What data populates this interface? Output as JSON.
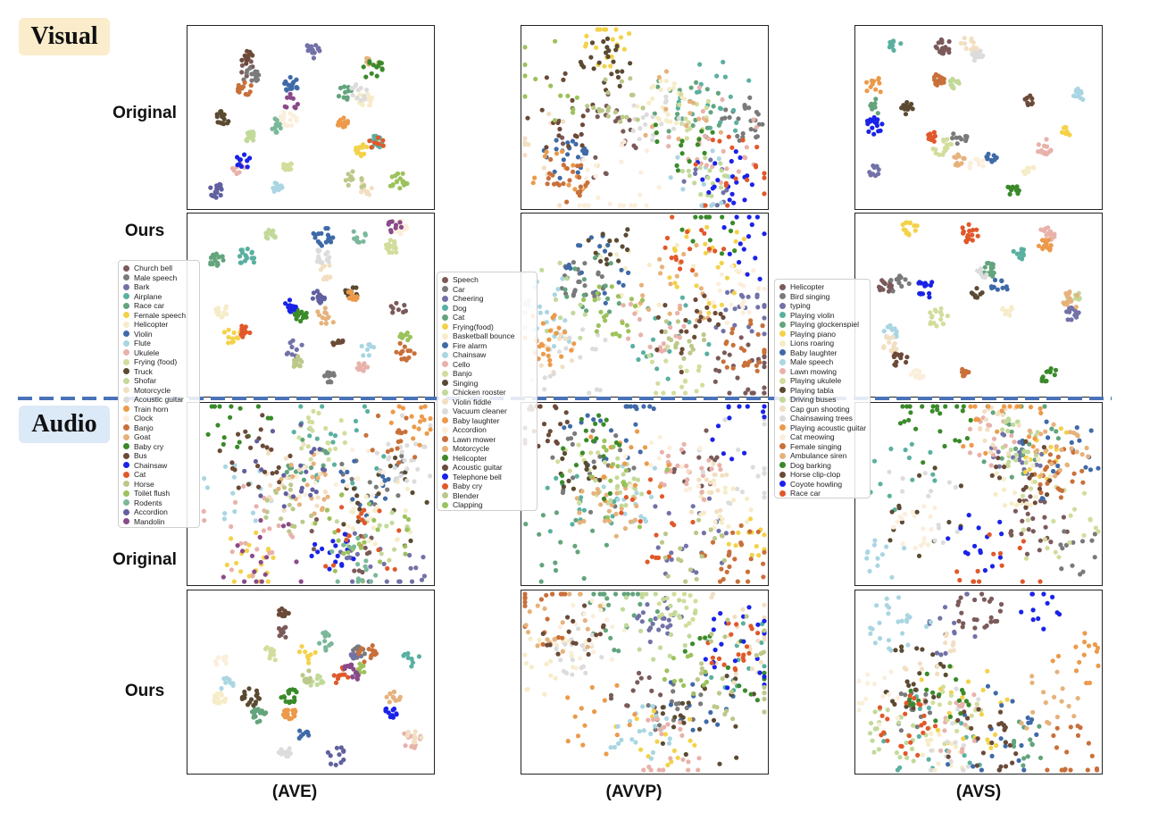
{
  "sections": {
    "visual": "Visual",
    "audio": "Audio"
  },
  "row_labels": {
    "original": "Original",
    "ours": "Ours"
  },
  "datasets": [
    "(AVE)",
    "(AVVP)",
    "(AVS)"
  ],
  "chart_data": {
    "type": "scatter",
    "kind": "t-SNE feature embedding grid",
    "rows": [
      "Visual Original",
      "Visual Ours",
      "Audio Original",
      "Audio Ours"
    ],
    "columns": [
      "(AVE)",
      "(AVVP)",
      "(AVS)"
    ],
    "axes_visible": false,
    "grid": false,
    "legends": [
      {
        "dataset": "(AVE)",
        "placement": "left",
        "entries": [
          {
            "name": "Church bell",
            "color": "#7b5a5a"
          },
          {
            "name": "Male speech",
            "color": "#7a7a7a"
          },
          {
            "name": "Bark",
            "color": "#7272a8"
          },
          {
            "name": "Airplane",
            "color": "#5ab0a0"
          },
          {
            "name": "Race car",
            "color": "#63a47c"
          },
          {
            "name": "Female speech",
            "color": "#f3d24a"
          },
          {
            "name": "Helicopter",
            "color": "#f6ecc8"
          },
          {
            "name": "Violin",
            "color": "#3f6aa8"
          },
          {
            "name": "Flute",
            "color": "#a9d6e2"
          },
          {
            "name": "Ukulele",
            "color": "#e8b2aa"
          },
          {
            "name": "Frying (food)",
            "color": "#d2dd9c"
          },
          {
            "name": "Truck",
            "color": "#5b4a32"
          },
          {
            "name": "Shofar",
            "color": "#c2d99a"
          },
          {
            "name": "Motorcycle",
            "color": "#f2dfc2"
          },
          {
            "name": "Acoustic guitar",
            "color": "#dcdcdc"
          },
          {
            "name": "Train horn",
            "color": "#ec9a4a"
          },
          {
            "name": "Clock",
            "color": "#fbeedb"
          },
          {
            "name": "Banjo",
            "color": "#c9703a"
          },
          {
            "name": "Goat",
            "color": "#e6b27c"
          },
          {
            "name": "Baby cry",
            "color": "#3a8a2a"
          },
          {
            "name": "Bus",
            "color": "#6b4a38"
          },
          {
            "name": "Chainsaw",
            "color": "#1a22e8"
          },
          {
            "name": "Cat",
            "color": "#e1582a"
          },
          {
            "name": "Horse",
            "color": "#bcc88a"
          },
          {
            "name": "Toilet flush",
            "color": "#9cc25c"
          },
          {
            "name": "Rodents",
            "color": "#7ab89a"
          },
          {
            "name": "Accordion",
            "color": "#6060a0"
          },
          {
            "name": "Mandolin",
            "color": "#8a4a8a"
          }
        ]
      },
      {
        "dataset": "(AVVP)",
        "placement": "center",
        "entries": [
          {
            "name": "Speech",
            "color": "#7b5a5a"
          },
          {
            "name": "Car",
            "color": "#7a7a7a"
          },
          {
            "name": "Cheering",
            "color": "#7272a8"
          },
          {
            "name": "Dog",
            "color": "#5ab0a0"
          },
          {
            "name": "Cat",
            "color": "#63a47c"
          },
          {
            "name": "Frying(food)",
            "color": "#f3d24a"
          },
          {
            "name": "Basketball bounce",
            "color": "#f6ecc8"
          },
          {
            "name": "Fire alarm",
            "color": "#3f6aa8"
          },
          {
            "name": "Chainsaw",
            "color": "#a9d6e2"
          },
          {
            "name": "Cello",
            "color": "#e8b2aa"
          },
          {
            "name": "Banjo",
            "color": "#d2dd9c"
          },
          {
            "name": "Singing",
            "color": "#5b4a32"
          },
          {
            "name": "Chicken rooster",
            "color": "#c2d99a"
          },
          {
            "name": "Violin fiddle",
            "color": "#f2dfc2"
          },
          {
            "name": "Vacuum cleaner",
            "color": "#dcdcdc"
          },
          {
            "name": "Baby laughter",
            "color": "#ec9a4a"
          },
          {
            "name": "Accordion",
            "color": "#fbeedb"
          },
          {
            "name": "Lawn mower",
            "color": "#c9703a"
          },
          {
            "name": "Motorcycle",
            "color": "#e6b27c"
          },
          {
            "name": "Helicopter",
            "color": "#3a8a2a"
          },
          {
            "name": "Acoustic guitar",
            "color": "#6b4a38"
          },
          {
            "name": "Telephone bell",
            "color": "#1a22e8"
          },
          {
            "name": "Baby cry",
            "color": "#e1582a"
          },
          {
            "name": "Blender",
            "color": "#bcc88a"
          },
          {
            "name": "Clapping",
            "color": "#9cc25c"
          }
        ]
      },
      {
        "dataset": "(AVS)",
        "placement": "right",
        "entries": [
          {
            "name": "Helicopter",
            "color": "#7b5a5a"
          },
          {
            "name": "Bird singing",
            "color": "#7a7a7a"
          },
          {
            "name": "typing",
            "color": "#7272a8"
          },
          {
            "name": "Playing violin",
            "color": "#5ab0a0"
          },
          {
            "name": "Playing glockenspiel",
            "color": "#63a47c"
          },
          {
            "name": "Playing piano",
            "color": "#f3d24a"
          },
          {
            "name": "Lions roaring",
            "color": "#f6ecc8"
          },
          {
            "name": "Baby laughter",
            "color": "#3f6aa8"
          },
          {
            "name": "Male speech",
            "color": "#a9d6e2"
          },
          {
            "name": "Lawn mowing",
            "color": "#e8b2aa"
          },
          {
            "name": "Playing ukulele",
            "color": "#d2dd9c"
          },
          {
            "name": "Playing tabla",
            "color": "#5b4a32"
          },
          {
            "name": "Driving buses",
            "color": "#c2d99a"
          },
          {
            "name": "Cap gun shooting",
            "color": "#f2dfc2"
          },
          {
            "name": "Chainsawing trees",
            "color": "#dcdcdc"
          },
          {
            "name": "Playing acoustic guitar",
            "color": "#ec9a4a"
          },
          {
            "name": "Cat meowing",
            "color": "#fbeedb"
          },
          {
            "name": "Female singing",
            "color": "#c9703a"
          },
          {
            "name": "Ambulance siren",
            "color": "#e6b27c"
          },
          {
            "name": "Dog barking",
            "color": "#3a8a2a"
          },
          {
            "name": "Horse clip-clop",
            "color": "#6b4a38"
          },
          {
            "name": "Coyote howling",
            "color": "#1a22e8"
          },
          {
            "name": "Race car",
            "color": "#e1582a"
          }
        ]
      }
    ]
  }
}
